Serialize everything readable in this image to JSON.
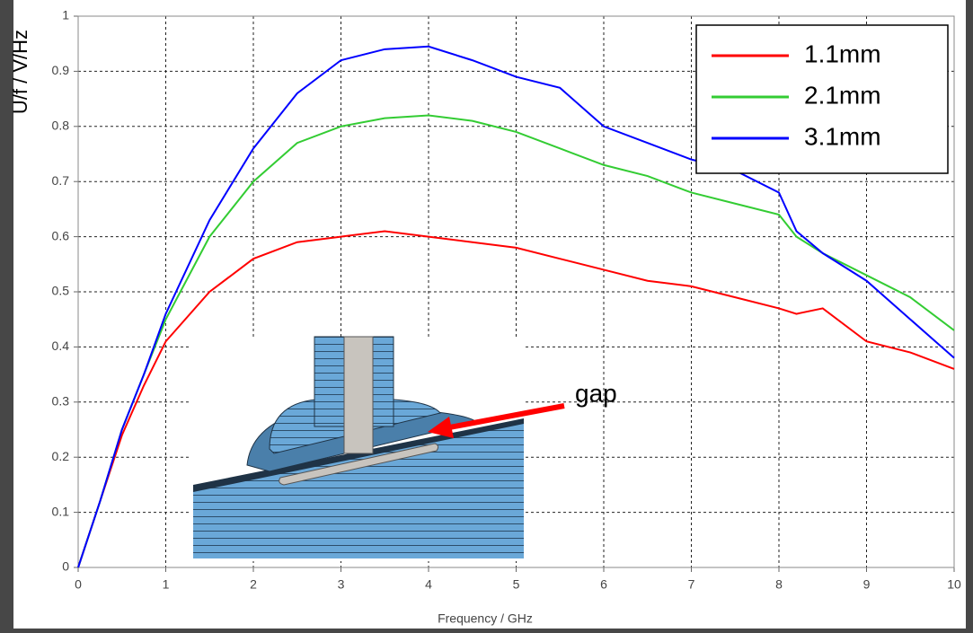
{
  "chart_data": {
    "type": "line",
    "y_label": "U/f / V/Hz",
    "x_label": "Frequency / GHz",
    "annotation": "gap",
    "x": [
      0,
      0.25,
      0.5,
      0.75,
      1,
      1.5,
      2,
      2.5,
      3,
      3.5,
      4,
      4.5,
      5,
      5.5,
      6,
      6.5,
      7,
      7.5,
      8,
      8.2,
      8.5,
      9,
      9.5,
      10
    ],
    "series": [
      {
        "name": "1.1mm",
        "color": "#ff0000",
        "values": [
          0,
          0.12,
          0.24,
          0.33,
          0.41,
          0.5,
          0.56,
          0.59,
          0.6,
          0.61,
          0.6,
          0.59,
          0.58,
          0.56,
          0.54,
          0.52,
          0.51,
          0.49,
          0.47,
          0.46,
          0.47,
          0.41,
          0.39,
          0.36
        ]
      },
      {
        "name": "2.1mm",
        "color": "#33cc33",
        "values": [
          0,
          0.12,
          0.25,
          0.35,
          0.45,
          0.6,
          0.7,
          0.77,
          0.8,
          0.815,
          0.82,
          0.81,
          0.79,
          0.76,
          0.73,
          0.71,
          0.68,
          0.66,
          0.64,
          0.6,
          0.57,
          0.53,
          0.49,
          0.43
        ]
      },
      {
        "name": "3.1mm",
        "color": "#0000ff",
        "values": [
          0,
          0.12,
          0.25,
          0.35,
          0.46,
          0.63,
          0.76,
          0.86,
          0.92,
          0.94,
          0.945,
          0.92,
          0.89,
          0.87,
          0.8,
          0.77,
          0.74,
          0.72,
          0.68,
          0.61,
          0.57,
          0.52,
          0.45,
          0.38
        ]
      }
    ],
    "xlim": [
      0,
      10
    ],
    "xticks": [
      0,
      1,
      2,
      3,
      4,
      5,
      6,
      7,
      8,
      9,
      10
    ],
    "ylim": [
      0,
      1
    ],
    "yticks": [
      0,
      0.1,
      0.2,
      0.3,
      0.4,
      0.5,
      0.6,
      0.7,
      0.8,
      0.9,
      1
    ],
    "grid": true,
    "legend": "upper right"
  }
}
